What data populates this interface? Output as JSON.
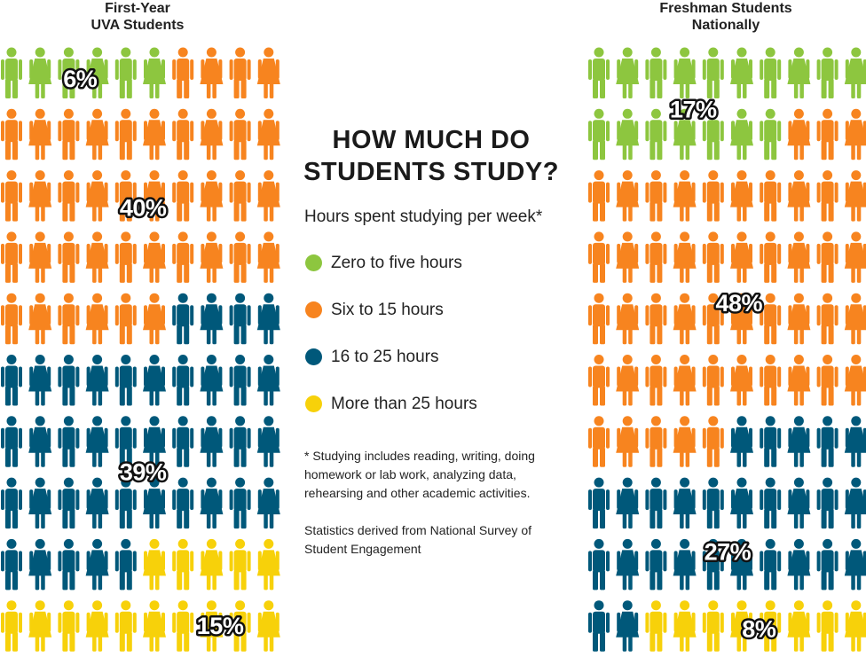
{
  "title": "HOW MUCH DO STUDENTS STUDY?",
  "subtitle": "Hours spent studying per week*",
  "legend": [
    {
      "label": "Zero to five hours",
      "color": "#8dc63f"
    },
    {
      "label": "Six to 15 hours",
      "color": "#f7841f"
    },
    {
      "label": "16 to 25 hours",
      "color": "#00587a"
    },
    {
      "label": "More than 25 hours",
      "color": "#f7d10a"
    }
  ],
  "footnote": "* Studying includes reading, writing, doing homework or lab work, analyzing data, rehearsing and other academic activities.",
  "source": "Statistics derived from National Survey of Student Engagement",
  "chart_data": [
    {
      "type": "pictograph",
      "title": "First-Year\nUVA Students",
      "series": [
        {
          "name": "Zero to five hours",
          "value": 6,
          "label": "6%"
        },
        {
          "name": "Six to 15 hours",
          "value": 40,
          "label": "40%"
        },
        {
          "name": "16 to 25 hours",
          "value": 39,
          "label": "39%"
        },
        {
          "name": "More than 25 hours",
          "value": 15,
          "label": "15%"
        }
      ]
    },
    {
      "type": "pictograph",
      "title": "Freshman Students\nNationally",
      "series": [
        {
          "name": "Zero to five hours",
          "value": 17,
          "label": "17%"
        },
        {
          "name": "Six to 15 hours",
          "value": 48,
          "label": "48%"
        },
        {
          "name": "16 to 25 hours",
          "value": 27,
          "label": "27%"
        },
        {
          "name": "More than 25 hours",
          "value": 8,
          "label": "8%"
        }
      ]
    }
  ]
}
